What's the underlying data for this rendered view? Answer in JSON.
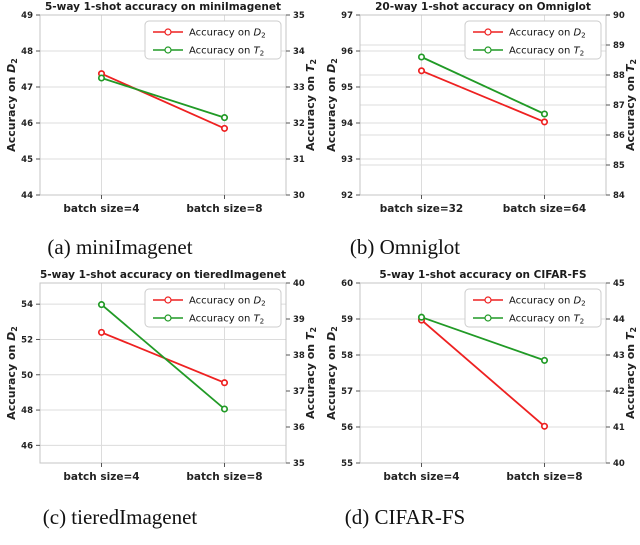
{
  "colors": {
    "red": "#ee2121",
    "green": "#219a26",
    "grid": "#dcdcdc",
    "spine": "#c5c5c5",
    "text": "#222222",
    "legend_border": "#cccccc",
    "legend_bg": "#ffffff"
  },
  "chart_data": [
    {
      "type": "line",
      "title": "5-way 1-shot accuracy on miniImagenet",
      "caption": "(a) miniImagenet",
      "categories": [
        "batch size=4",
        "batch size=8"
      ],
      "legend_position": "upper right",
      "grid_from": [
        "left"
      ],
      "left_axis": {
        "label_prefix": "Accuracy on",
        "symbol": "D",
        "sub": "2",
        "min": 44,
        "max": 49,
        "ticks": [
          44,
          45,
          46,
          47,
          48,
          49
        ]
      },
      "right_axis": {
        "label_prefix": "Accuracy on",
        "symbol": "T",
        "sub": "2",
        "min": 30,
        "max": 35,
        "ticks": [
          30,
          31,
          32,
          33,
          34,
          35
        ]
      },
      "series": [
        {
          "name": "Accuracy on D2",
          "label_prefix": "Accuracy on",
          "symbol": "D",
          "sub": "2",
          "axis": "left",
          "color_key": "red",
          "values": [
            47.37,
            45.85
          ]
        },
        {
          "name": "Accuracy on T2",
          "label_prefix": "Accuracy on",
          "symbol": "T",
          "sub": "2",
          "axis": "right",
          "color_key": "green",
          "values": [
            33.25,
            32.15
          ]
        }
      ]
    },
    {
      "type": "line",
      "title": "20-way 1-shot accuracy on Omniglot",
      "caption": "(b) Omniglot",
      "categories": [
        "batch size=32",
        "batch size=64"
      ],
      "legend_position": "upper right",
      "grid_from": [
        "left",
        "right"
      ],
      "left_axis": {
        "label_prefix": "Accuracy on",
        "symbol": "D",
        "sub": "2",
        "min": 92,
        "max": 97,
        "ticks": [
          92,
          93,
          94,
          95,
          96,
          97
        ]
      },
      "right_axis": {
        "label_prefix": "Accuracy on",
        "symbol": "T",
        "sub": "2",
        "min": 84,
        "max": 90,
        "ticks": [
          84,
          85,
          86,
          87,
          88,
          89,
          90
        ]
      },
      "series": [
        {
          "name": "Accuracy on D2",
          "label_prefix": "Accuracy on",
          "symbol": "D",
          "sub": "2",
          "axis": "left",
          "color_key": "red",
          "values": [
            95.45,
            94.03
          ]
        },
        {
          "name": "Accuracy on T2",
          "label_prefix": "Accuracy on",
          "symbol": "T",
          "sub": "2",
          "axis": "right",
          "color_key": "green",
          "values": [
            88.6,
            86.7
          ]
        }
      ]
    },
    {
      "type": "line",
      "title": "5-way 1-shot accuracy on tieredImagenet",
      "caption": "(c) tieredImagenet",
      "categories": [
        "batch size=4",
        "batch size=8"
      ],
      "legend_position": "upper right",
      "grid_from": [
        "left"
      ],
      "left_axis": {
        "label_prefix": "Accuracy on",
        "symbol": "D",
        "sub": "2",
        "min": 45,
        "max": 55.2,
        "ticks": [
          46,
          48,
          50,
          52,
          54
        ]
      },
      "right_axis": {
        "label_prefix": "Accuracy on",
        "symbol": "T",
        "sub": "2",
        "min": 35,
        "max": 40,
        "ticks": [
          35,
          36,
          37,
          38,
          39,
          40
        ]
      },
      "series": [
        {
          "name": "Accuracy on D2",
          "label_prefix": "Accuracy on",
          "symbol": "D",
          "sub": "2",
          "axis": "left",
          "color_key": "red",
          "values": [
            52.4,
            49.55
          ]
        },
        {
          "name": "Accuracy on T2",
          "label_prefix": "Accuracy on",
          "symbol": "T",
          "sub": "2",
          "axis": "right",
          "color_key": "green",
          "values": [
            39.4,
            36.5
          ]
        }
      ]
    },
    {
      "type": "line",
      "title": "5-way 1-shot accuracy on CIFAR-FS",
      "caption": "(d) CIFAR-FS",
      "categories": [
        "batch size=4",
        "batch size=8"
      ],
      "legend_position": "upper right",
      "grid_from": [
        "left"
      ],
      "left_axis": {
        "label_prefix": "Accuracy on",
        "symbol": "D",
        "sub": "2",
        "min": 55,
        "max": 60,
        "ticks": [
          55,
          56,
          57,
          58,
          59,
          60
        ]
      },
      "right_axis": {
        "label_prefix": "Accuracy on",
        "symbol": "T",
        "sub": "2",
        "min": 40,
        "max": 45,
        "ticks": [
          40,
          41,
          42,
          43,
          44,
          45
        ]
      },
      "series": [
        {
          "name": "Accuracy on D2",
          "label_prefix": "Accuracy on",
          "symbol": "D",
          "sub": "2",
          "axis": "left",
          "color_key": "red",
          "values": [
            58.97,
            56.02
          ]
        },
        {
          "name": "Accuracy on T2",
          "label_prefix": "Accuracy on",
          "symbol": "T",
          "sub": "2",
          "axis": "right",
          "color_key": "green",
          "values": [
            44.05,
            42.85
          ]
        }
      ]
    }
  ]
}
